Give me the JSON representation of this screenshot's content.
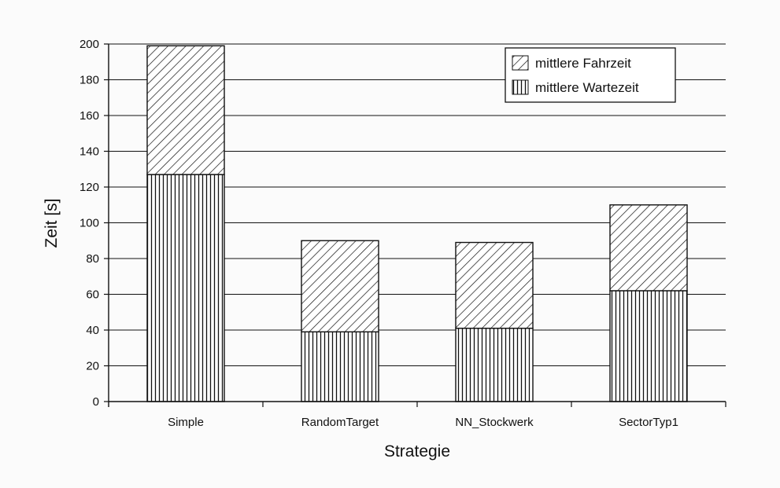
{
  "chart_data": {
    "type": "bar",
    "stacked": true,
    "categories": [
      "Simple",
      "RandomTarget",
      "NN_Stockwerk",
      "SectorTyp1"
    ],
    "series": [
      {
        "name": "mittlere Wartezeit",
        "values": [
          127,
          39,
          41,
          62
        ],
        "pattern": "vertical-lines"
      },
      {
        "name": "mittlere Fahrzeit",
        "values": [
          72,
          51,
          48,
          48
        ],
        "pattern": "diagonal-lines"
      }
    ],
    "title": "",
    "xlabel": "Strategie",
    "ylabel": "Zeit [s]",
    "ylim": [
      0,
      200
    ],
    "yticks": [
      0,
      20,
      40,
      60,
      80,
      100,
      120,
      140,
      160,
      180,
      200
    ],
    "grid": true,
    "legend_position": "top-right",
    "legend_order": [
      "mittlere Fahrzeit",
      "mittlere Wartezeit"
    ],
    "colors": {
      "ink": "#111111",
      "background": "#fbfbfb",
      "bar_fill": "#ffffff"
    }
  }
}
